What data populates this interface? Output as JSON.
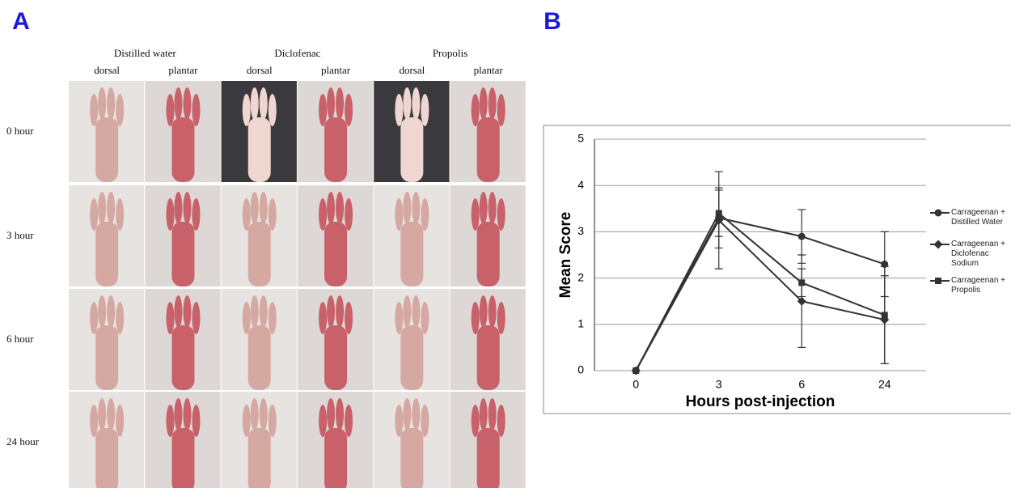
{
  "panel_a": {
    "label": "A",
    "groups": [
      "Distilled water",
      "Diclofenac",
      "Propolis"
    ],
    "views": [
      "dorsal",
      "plantar",
      "dorsal",
      "plantar",
      "dorsal",
      "plantar"
    ],
    "rows": [
      "0 hour",
      "3 hour",
      "6 hour",
      "24 hour"
    ]
  },
  "panel_b": {
    "label": "B"
  },
  "chart_data": {
    "type": "line",
    "categories": [
      "0",
      "3",
      "6",
      "24"
    ],
    "x_label": "Hours post-injection",
    "y_label": "Mean Score",
    "ylim": [
      0,
      5
    ],
    "yticks": [
      0,
      1,
      2,
      3,
      4,
      5
    ],
    "grid": true,
    "series": [
      {
        "name": "Carrageenan + Distilled Water",
        "color": "#333333",
        "marker": "circle",
        "values": [
          0,
          3.3,
          2.9,
          2.3
        ],
        "errors": [
          0,
          0.65,
          0.58,
          0.7
        ]
      },
      {
        "name": "Carrageenan + Diclofenac Sodium",
        "color": "#333333",
        "marker": "diamond",
        "values": [
          0,
          3.25,
          1.5,
          1.1
        ],
        "errors": [
          0,
          1.05,
          1.0,
          0.95
        ]
      },
      {
        "name": "Carrageenan + Propolis",
        "color": "#333333",
        "marker": "square",
        "values": [
          0,
          3.4,
          1.9,
          1.2
        ],
        "errors": [
          0,
          0.5,
          0.3,
          1.05
        ]
      }
    ]
  }
}
